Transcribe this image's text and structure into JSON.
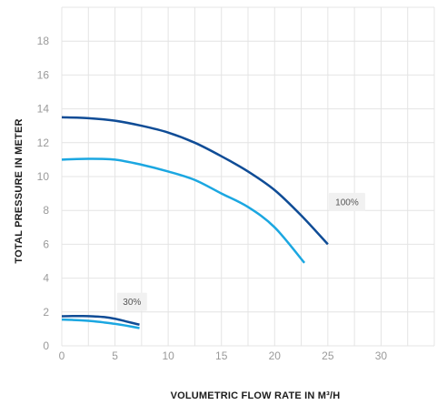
{
  "chart_data": {
    "type": "line",
    "xlabel": "VOLUMETRIC FLOW RATE IN M³/H",
    "ylabel": "TOTAL PRESSURE IN METER",
    "xlim": [
      0,
      35
    ],
    "ylim": [
      0,
      20
    ],
    "xticks": [
      0,
      5,
      10,
      15,
      20,
      25,
      30
    ],
    "yticks": [
      0,
      2,
      4,
      6,
      8,
      10,
      12,
      14,
      16,
      18
    ],
    "grid": true,
    "series": [
      {
        "color": "#0f4c96",
        "x": [
          0,
          2.5,
          5,
          7.5,
          10,
          12.5,
          15,
          17.5,
          20,
          22.5,
          25
        ],
        "y": [
          13.5,
          13.45,
          13.3,
          13.0,
          12.6,
          12.0,
          11.2,
          10.3,
          9.2,
          7.7,
          6.0
        ]
      },
      {
        "color": "#1ba7e1",
        "x": [
          0,
          2.5,
          5,
          7.5,
          10,
          12.5,
          15,
          17.5,
          20,
          22.8
        ],
        "y": [
          11.0,
          11.05,
          11.0,
          10.7,
          10.3,
          9.8,
          9.0,
          8.2,
          7.0,
          4.9
        ]
      },
      {
        "color": "#0f4c96",
        "x": [
          0,
          1,
          2,
          3,
          4,
          5,
          6,
          7.3
        ],
        "y": [
          1.75,
          1.76,
          1.76,
          1.74,
          1.7,
          1.6,
          1.45,
          1.25
        ]
      },
      {
        "color": "#1ba7e1",
        "x": [
          0,
          1,
          2,
          3,
          4,
          5,
          6,
          7.3
        ],
        "y": [
          1.55,
          1.53,
          1.5,
          1.45,
          1.38,
          1.3,
          1.2,
          1.05
        ]
      }
    ],
    "annotations": [
      {
        "text": "100%",
        "x": 26.8,
        "y": 8.5
      },
      {
        "text": "30%",
        "x": 6.6,
        "y": 2.6
      }
    ]
  }
}
